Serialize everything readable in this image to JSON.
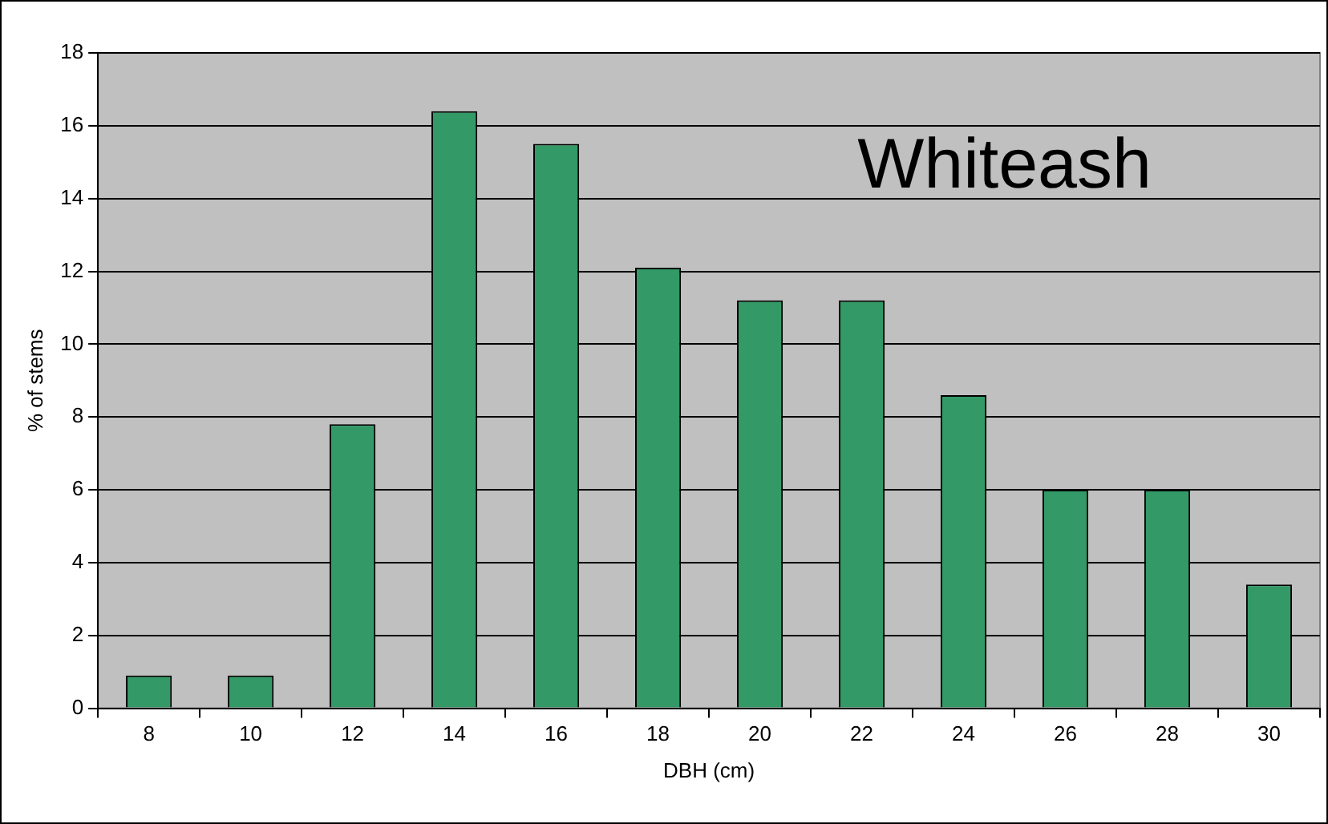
{
  "chart_data": {
    "type": "bar",
    "title": "Whiteash",
    "xlabel": "DBH (cm)",
    "ylabel": "% of stems",
    "categories": [
      "8",
      "10",
      "12",
      "14",
      "16",
      "18",
      "20",
      "22",
      "24",
      "26",
      "28",
      "30"
    ],
    "values": [
      0.9,
      0.9,
      7.8,
      16.4,
      15.5,
      12.1,
      11.2,
      11.2,
      8.6,
      6.0,
      6.0,
      3.4
    ],
    "color": "#339966",
    "ylim": [
      0,
      18
    ],
    "yticks": [
      0,
      2,
      4,
      6,
      8,
      10,
      12,
      14,
      16,
      18
    ],
    "grid": "y",
    "legend": false
  }
}
